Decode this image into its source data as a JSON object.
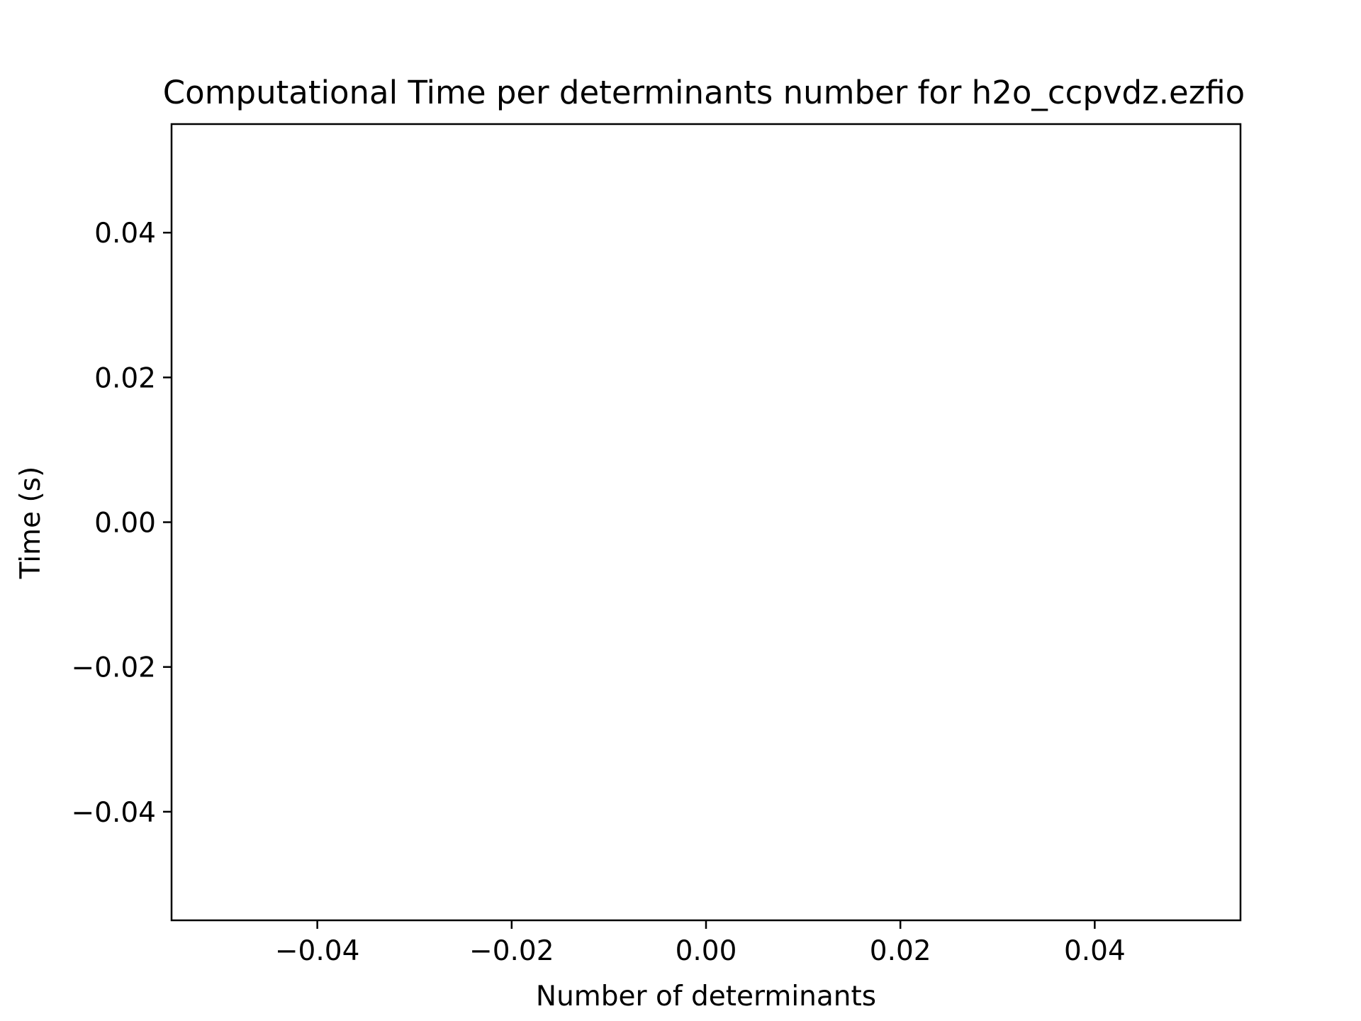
{
  "chart_data": {
    "type": "line",
    "title": "Computational Time per determinants number for h2o_ccpvdz.ezfio",
    "xlabel": "Number of determinants",
    "ylabel": "Time (s)",
    "xlim": [
      -0.055,
      0.055
    ],
    "ylim": [
      -0.055,
      0.055
    ],
    "xticks": [
      -0.04,
      -0.02,
      0.0,
      0.02,
      0.04
    ],
    "xtick_labels": [
      "−0.04",
      "−0.02",
      "0.00",
      "0.02",
      "0.04"
    ],
    "yticks": [
      -0.04,
      -0.02,
      0.0,
      0.02,
      0.04
    ],
    "ytick_labels": [
      "−0.04",
      "−0.02",
      "0.00",
      "0.02",
      "0.04"
    ],
    "grid": false,
    "series": [],
    "colors": {
      "axes": "#000000",
      "background": "#ffffff"
    }
  }
}
